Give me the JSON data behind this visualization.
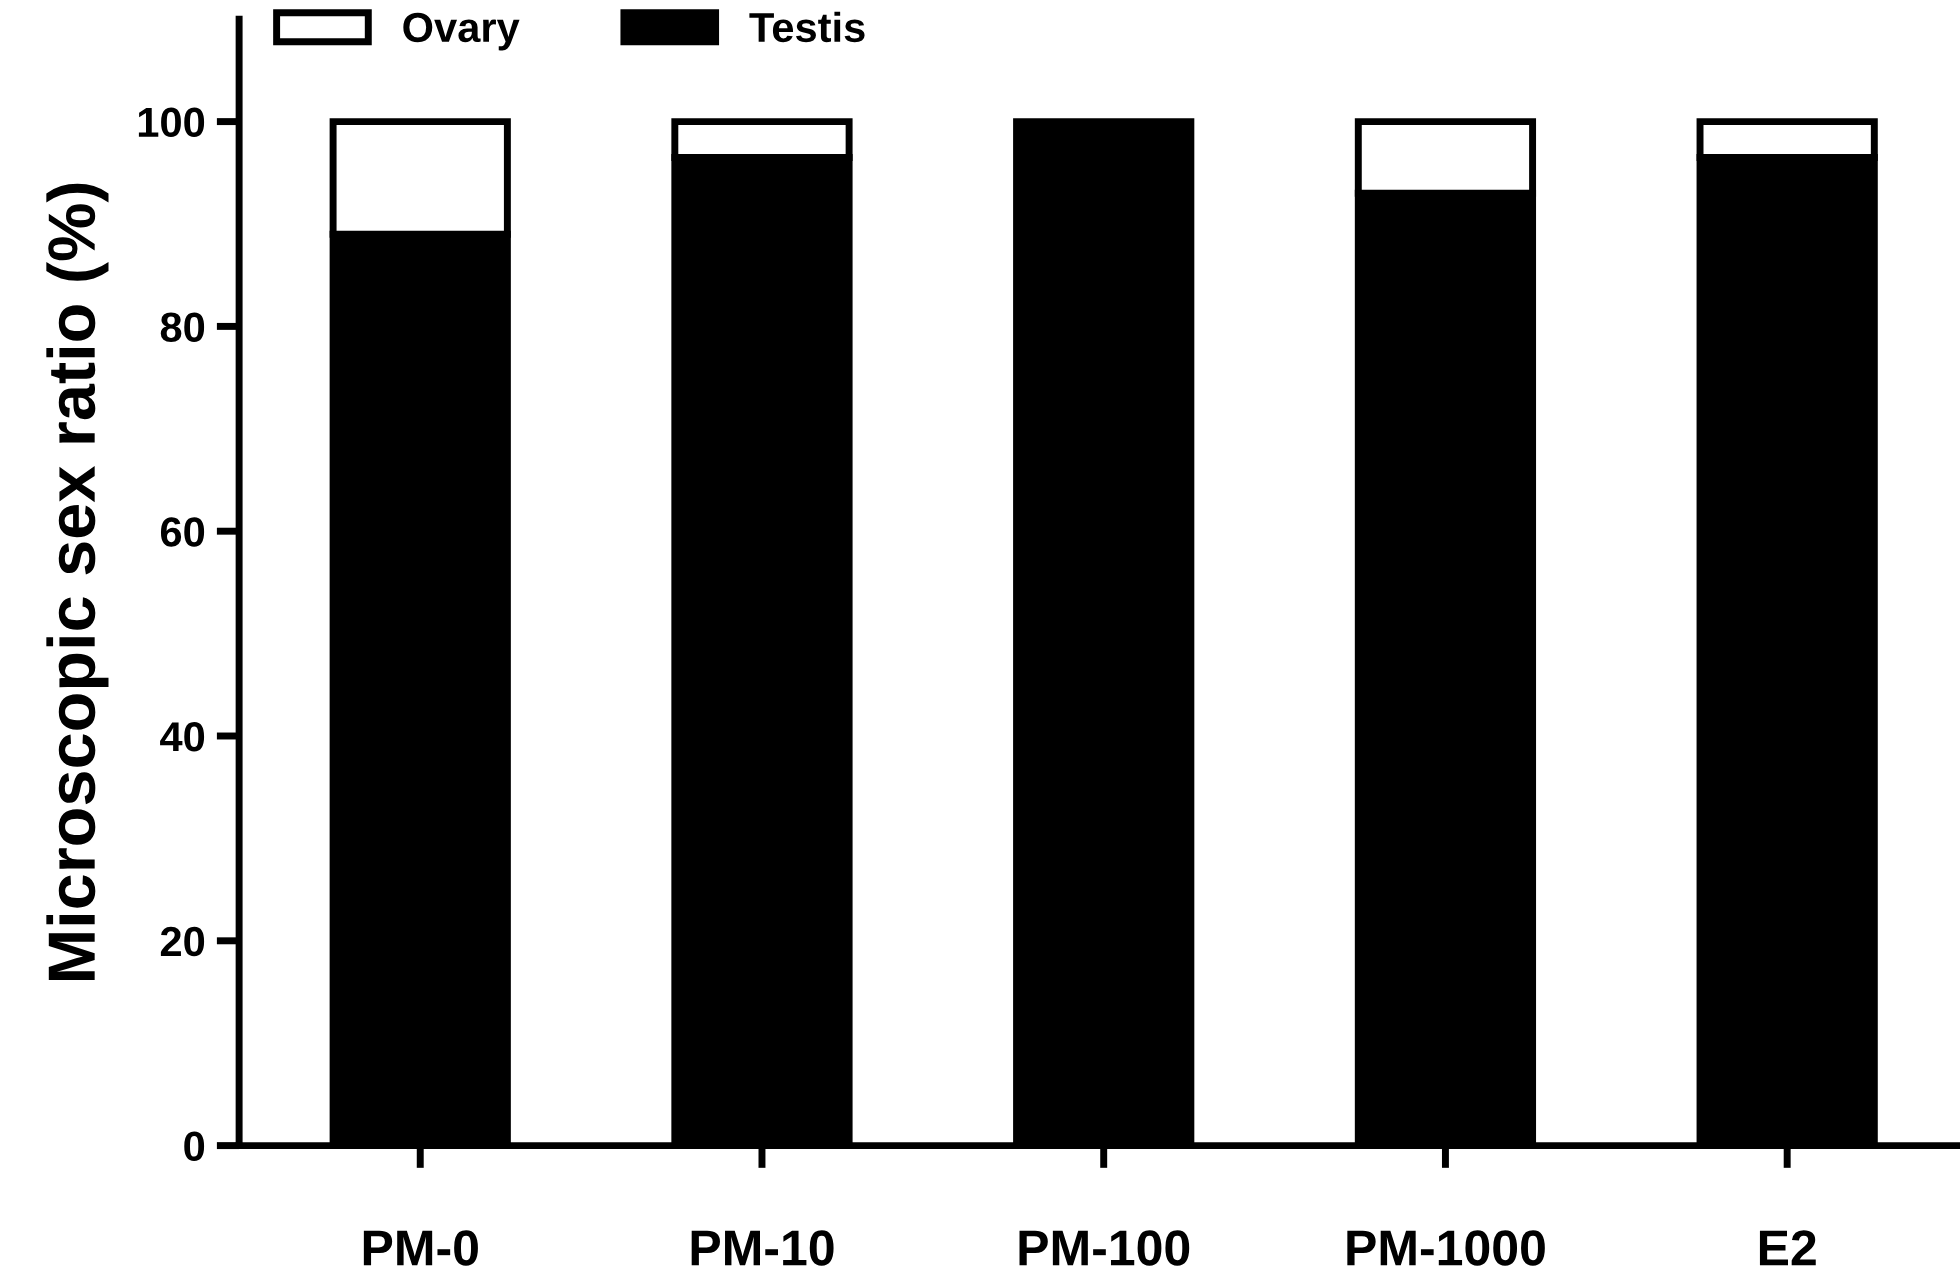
{
  "chart_data": {
    "type": "bar",
    "stacked": true,
    "ylabel": "Microscopic sex ratio (%)",
    "categories": [
      "PM-0",
      "PM-10",
      "PM-100",
      "PM-1000",
      "E2"
    ],
    "series": [
      {
        "name": "Testis",
        "color": "#000000",
        "values": [
          89,
          96.5,
          100,
          93,
          96.5
        ]
      },
      {
        "name": "Ovary",
        "color": "#ffffff",
        "values": [
          11,
          3.5,
          null,
          7,
          3.5
        ]
      }
    ],
    "ylim": [
      0,
      110
    ],
    "yticks": [
      0,
      20,
      40,
      60,
      80,
      100
    ],
    "grid": false,
    "legend": "top left"
  }
}
